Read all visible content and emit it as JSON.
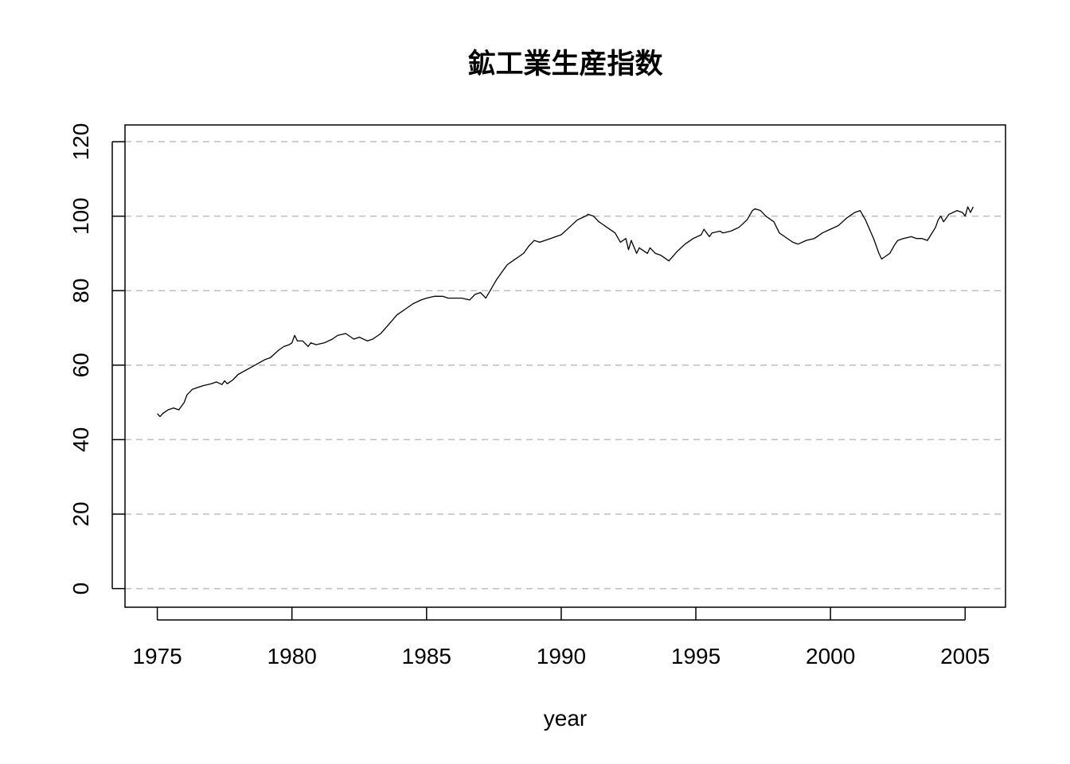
{
  "chart_data": {
    "type": "line",
    "title": "鉱工業生産指数",
    "xlabel": "year",
    "ylabel": "",
    "xlim": [
      1973.8,
      2006.5
    ],
    "ylim": [
      -5,
      124.5
    ],
    "xticks": [
      1975,
      1980,
      1985,
      1990,
      1995,
      2000,
      2005
    ],
    "yticks": [
      0,
      20,
      40,
      60,
      80,
      100,
      120
    ],
    "grid": {
      "y": true,
      "x": false,
      "style": "dashed",
      "color": "#bebebe"
    },
    "line_color": "#000000",
    "series": [
      {
        "x": [
          1975.0,
          1975.1,
          1975.2,
          1975.3,
          1975.4,
          1975.6,
          1975.8,
          1976.0,
          1976.1,
          1976.3,
          1976.5,
          1976.7,
          1977.0,
          1977.2,
          1977.4,
          1977.5,
          1977.6,
          1977.8,
          1978.0,
          1978.5,
          1979.0,
          1979.2,
          1979.5,
          1979.7,
          1979.9,
          1980.0,
          1980.1,
          1980.2,
          1980.4,
          1980.6,
          1980.7,
          1980.9,
          1981.2,
          1981.5,
          1981.7,
          1982.0,
          1982.3,
          1982.5,
          1982.8,
          1983.0,
          1983.3,
          1983.6,
          1983.9,
          1984.2,
          1984.5,
          1984.8,
          1985.0,
          1985.3,
          1985.6,
          1985.8,
          1986.0,
          1986.3,
          1986.6,
          1986.8,
          1987.0,
          1987.2,
          1987.4,
          1987.6,
          1987.8,
          1988.0,
          1988.2,
          1988.4,
          1988.6,
          1988.8,
          1989.0,
          1989.2,
          1989.4,
          1989.6,
          1989.8,
          1990.0,
          1990.3,
          1990.6,
          1990.9,
          1991.0,
          1991.2,
          1991.4,
          1991.5,
          1991.7,
          1992.0,
          1992.2,
          1992.4,
          1992.5,
          1992.6,
          1992.8,
          1992.9,
          1993.0,
          1993.2,
          1993.3,
          1993.5,
          1993.7,
          1994.0,
          1994.3,
          1994.6,
          1994.9,
          1995.2,
          1995.3,
          1995.5,
          1995.6,
          1995.9,
          1996.0,
          1996.3,
          1996.6,
          1996.9,
          1997.1,
          1997.2,
          1997.4,
          1997.6,
          1997.9,
          1998.1,
          1998.3,
          1998.6,
          1998.8,
          1999.1,
          1999.4,
          1999.7,
          2000.0,
          2000.3,
          2000.6,
          2000.8,
          2000.9,
          2001.1,
          2001.3,
          2001.6,
          2001.8,
          2001.9,
          2002.0,
          2002.2,
          2002.4,
          2002.5,
          2002.7,
          2003.0,
          2003.2,
          2003.4,
          2003.6,
          2003.9,
          2004.0,
          2004.1,
          2004.2,
          2004.4,
          2004.7,
          2004.9,
          2005.0,
          2005.1,
          2005.2,
          2005.3
        ],
        "values": [
          47.0,
          46.2,
          47.0,
          47.5,
          48.0,
          48.5,
          48.0,
          50.0,
          52.0,
          53.5,
          54.0,
          54.5,
          55.0,
          55.5,
          54.8,
          55.8,
          55.0,
          56.0,
          57.5,
          59.5,
          61.5,
          62.0,
          64.0,
          65.0,
          65.5,
          66.0,
          68.0,
          66.5,
          66.5,
          65.0,
          66.0,
          65.5,
          66.0,
          67.0,
          68.0,
          68.5,
          67.0,
          67.5,
          66.5,
          67.0,
          68.5,
          71.0,
          73.5,
          75.0,
          76.5,
          77.5,
          78.0,
          78.5,
          78.5,
          78.0,
          78.0,
          78.0,
          77.5,
          79.0,
          79.5,
          78.0,
          80.5,
          83.0,
          85.0,
          87.0,
          88.0,
          89.0,
          90.0,
          92.0,
          93.5,
          93.0,
          93.5,
          94.0,
          94.5,
          95.0,
          97.0,
          99.0,
          100.0,
          100.5,
          100.0,
          98.5,
          98.0,
          97.0,
          95.5,
          93.0,
          94.0,
          91.0,
          93.5,
          90.0,
          91.5,
          91.0,
          90.0,
          91.5,
          90.0,
          89.5,
          88.0,
          90.5,
          92.5,
          94.0,
          95.0,
          96.5,
          94.5,
          95.5,
          96.0,
          95.5,
          96.0,
          97.0,
          99.0,
          101.5,
          102.0,
          101.5,
          100.0,
          98.5,
          95.5,
          94.5,
          93.0,
          92.5,
          93.5,
          94.0,
          95.5,
          96.5,
          97.5,
          99.5,
          100.5,
          101.0,
          101.5,
          99.0,
          94.0,
          90.0,
          88.5,
          89.0,
          90.0,
          92.5,
          93.5,
          94.0,
          94.5,
          94.0,
          94.0,
          93.5,
          97.0,
          99.0,
          100.0,
          98.5,
          100.5,
          101.5,
          101.0,
          100.0,
          102.5,
          101.0,
          102.5
        ]
      }
    ]
  }
}
